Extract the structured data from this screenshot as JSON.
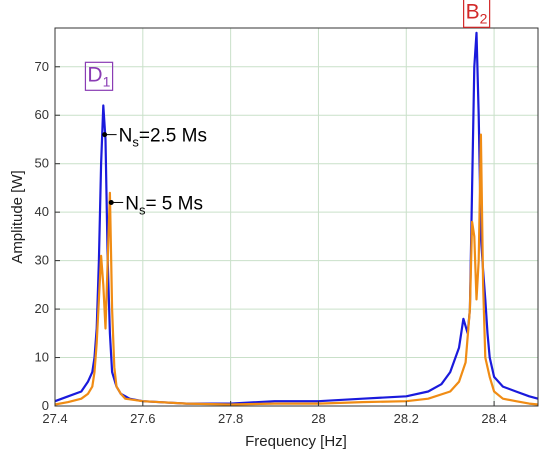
{
  "chart_data": {
    "type": "line",
    "xlabel": "Frequency [Hz]",
    "ylabel": "Amplitude [W]",
    "xlim": [
      27.4,
      28.5
    ],
    "ylim": [
      0,
      78
    ],
    "xticks": [
      27.4,
      27.6,
      27.8,
      28,
      28.2,
      28.4
    ],
    "xtick_labels": [
      "27.4",
      "27.6",
      "27.8",
      "28",
      "28.2",
      "28.4"
    ],
    "yticks": [
      0,
      10,
      20,
      30,
      40,
      50,
      60,
      70
    ],
    "ytick_labels": [
      "0",
      "10",
      "20",
      "30",
      "40",
      "50",
      "60",
      "70"
    ],
    "grid": true,
    "series": [
      {
        "name": "Ns=2.5 Ms",
        "color": "#1a1adc",
        "x": [
          27.4,
          27.43,
          27.46,
          27.475,
          27.485,
          27.49,
          27.495,
          27.5,
          27.505,
          27.51,
          27.515,
          27.52,
          27.525,
          27.53,
          27.54,
          27.55,
          27.57,
          27.6,
          27.7,
          27.8,
          27.9,
          28.0,
          28.1,
          28.2,
          28.25,
          28.28,
          28.3,
          28.32,
          28.33,
          28.34,
          28.345,
          28.35,
          28.355,
          28.36,
          28.365,
          28.37,
          28.375,
          28.38,
          28.385,
          28.39,
          28.4,
          28.42,
          28.45,
          28.48,
          28.5
        ],
        "y": [
          1,
          2,
          3,
          5,
          7,
          10,
          16,
          30,
          50,
          62,
          55,
          30,
          15,
          7,
          4,
          2.5,
          1.5,
          1,
          0.5,
          0.5,
          1,
          1,
          1.5,
          2,
          3,
          4.5,
          7,
          12,
          18,
          15,
          20,
          45,
          70,
          77,
          60,
          35,
          28,
          22,
          15,
          10,
          6,
          4,
          3,
          2,
          1.5
        ]
      },
      {
        "name": "Ns=5 Ms",
        "color": "#f08c14",
        "x": [
          27.4,
          27.43,
          27.46,
          27.475,
          27.485,
          27.49,
          27.495,
          27.5,
          27.505,
          27.51,
          27.515,
          27.52,
          27.525,
          27.53,
          27.535,
          27.54,
          27.55,
          27.56,
          27.6,
          27.7,
          27.8,
          27.9,
          28.0,
          28.1,
          28.2,
          28.25,
          28.3,
          28.32,
          28.335,
          28.345,
          28.35,
          28.355,
          28.36,
          28.365,
          28.37,
          28.375,
          28.38,
          28.385,
          28.39,
          28.4,
          28.42,
          28.45,
          28.48,
          28.5
        ],
        "y": [
          0.3,
          0.8,
          1.5,
          2.5,
          4,
          7,
          13,
          22,
          31,
          25,
          16,
          30,
          44,
          20,
          8,
          4,
          2.5,
          1.5,
          1,
          0.5,
          0.3,
          0.5,
          0.5,
          0.8,
          1,
          1.5,
          3,
          5,
          9,
          20,
          38,
          35,
          22,
          30,
          56,
          25,
          10,
          8,
          6,
          3,
          1.5,
          1,
          0.5,
          0.3
        ]
      }
    ],
    "annotations": [
      {
        "id": "ns25",
        "label": "N",
        "sub": "s",
        "rest": "=2.5 Ms",
        "x": 27.513,
        "y": 56,
        "color": "#000000"
      },
      {
        "id": "ns5",
        "label": "N",
        "sub": "s",
        "rest": "= 5 Ms",
        "x": 27.528,
        "y": 42,
        "color": "#000000"
      },
      {
        "id": "d1",
        "label": "D",
        "sub": "1",
        "x": 27.5,
        "y": 67,
        "color": "#8a3cb4"
      },
      {
        "id": "b2",
        "label": "B",
        "sub": "2",
        "x": 28.36,
        "y": 80,
        "color": "#d22828"
      }
    ]
  }
}
